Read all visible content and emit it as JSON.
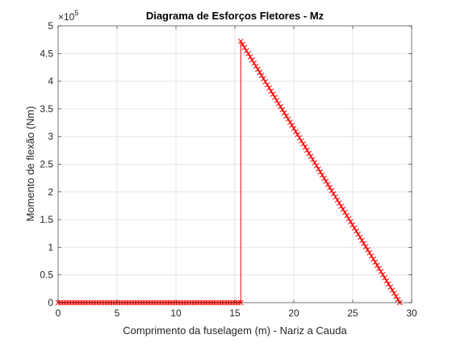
{
  "chart_data": {
    "type": "line",
    "title": "Diagrama de Esforços Fletores - Mz",
    "xlabel": "Comprimento da fuselagem (m) - Nariz a Cauda",
    "ylabel": "Momento de flexão (Nm)",
    "xlim": [
      0,
      30
    ],
    "ylim": [
      0,
      500000
    ],
    "y_exponent_label": "×10",
    "y_exponent_power": "5",
    "x_ticks": [
      0,
      5,
      10,
      15,
      20,
      25,
      30
    ],
    "x_tick_labels": [
      "0",
      "5",
      "10",
      "15",
      "20",
      "25",
      "30"
    ],
    "y_ticks": [
      0,
      50000,
      100000,
      150000,
      200000,
      250000,
      300000,
      350000,
      400000,
      450000,
      500000
    ],
    "y_tick_labels": [
      "0",
      "0.5",
      "1",
      "1.5",
      "2",
      "2.5",
      "3",
      "3.5",
      "4",
      "4.5",
      "5"
    ],
    "grid": true,
    "marker": "x",
    "color": "#ff0000",
    "series": [
      {
        "segments": [
          {
            "x_start": 0,
            "x_end": 15.5,
            "y_start": 0,
            "y_end": 0,
            "points": 68
          },
          {
            "x_start": 15.5,
            "x_end": 15.5,
            "y_start": 0,
            "y_end": 472000,
            "points": 0
          },
          {
            "x_start": 15.5,
            "x_end": 29,
            "y_start": 472000,
            "y_end": 0,
            "points": 85
          }
        ]
      }
    ]
  }
}
